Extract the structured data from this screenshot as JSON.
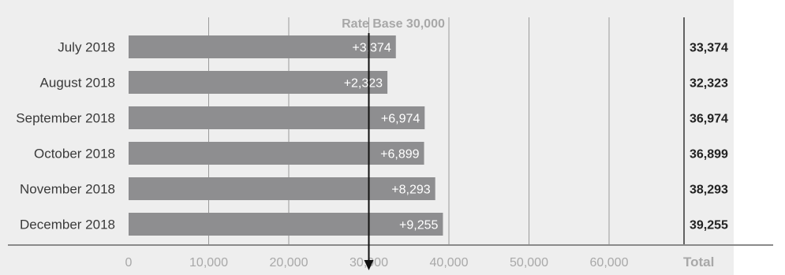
{
  "chart_data": {
    "type": "bar",
    "orientation": "horizontal",
    "categories": [
      "July 2018",
      "August 2018",
      "September 2018",
      "October 2018",
      "November 2018",
      "December 2018"
    ],
    "values": [
      33374,
      32323,
      36974,
      36899,
      38293,
      39255
    ],
    "bar_labels": [
      "+3,374",
      "+2,323",
      "+6,974",
      "+6,899",
      "+8,293",
      "+9,255"
    ],
    "totals": [
      "33,374",
      "32,323",
      "36,974",
      "36,899",
      "38,293",
      "39,255"
    ],
    "totals_header": "Total",
    "reference_line": {
      "value": 30000,
      "label": "Rate Base 30,000"
    },
    "xlim": [
      0,
      70000
    ],
    "x_ticks": [
      0,
      10000,
      20000,
      30000,
      40000,
      50000,
      60000
    ],
    "x_tick_labels": [
      "0",
      "10,000",
      "20,000",
      "30,000",
      "40,000",
      "50,000",
      "60,000"
    ],
    "grid": "vertical",
    "colors": {
      "bar": "#8e8e90",
      "panel": "#eeeeee",
      "gridline": "#9a9a9a",
      "reference": "#111111",
      "tick_text": "#a8a8a8"
    }
  }
}
